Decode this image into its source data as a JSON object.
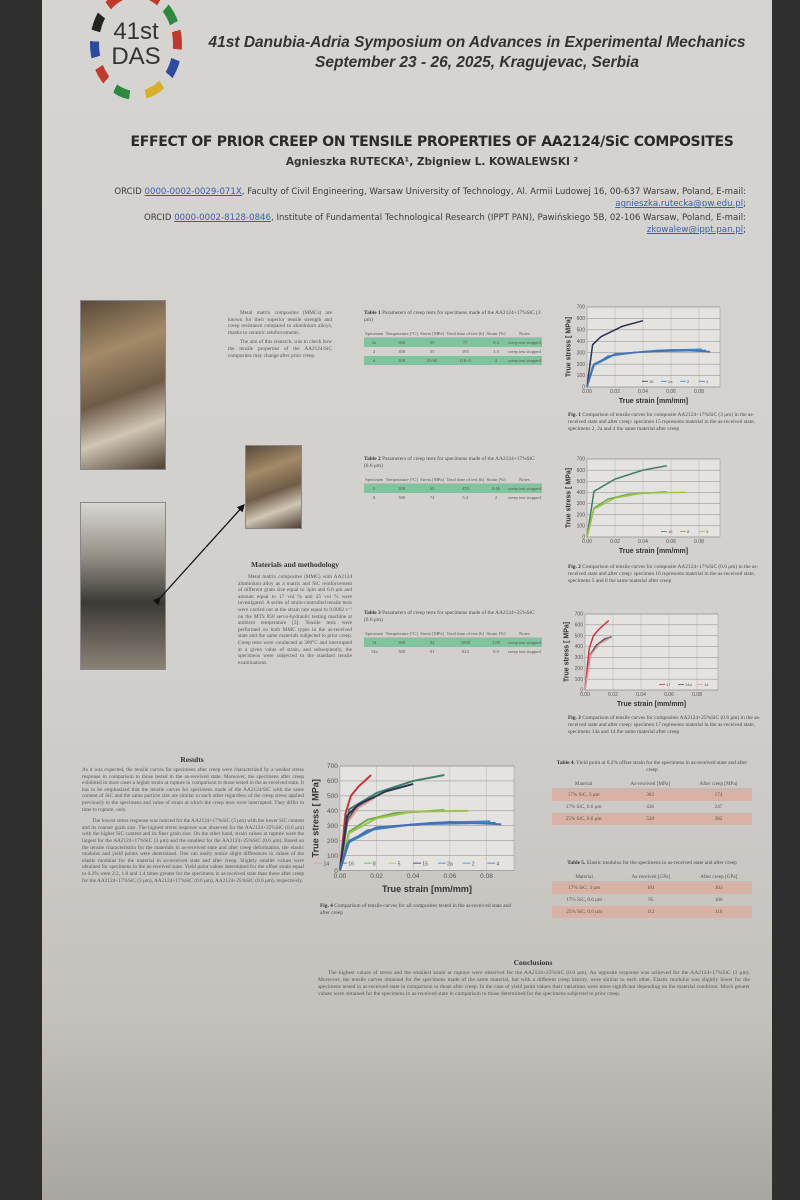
{
  "header": {
    "logo_line1": "41st",
    "logo_line2": "DAS",
    "event": "41st Danubia-Adria Symposium on Advances in Experimental Mechanics",
    "dates": "September 23 - 26, 2025, Kragujevac, Serbia"
  },
  "title": "EFFECT OF PRIOR CREEP ON TENSILE PROPERTIES OF AA2124/SiC COMPOSITES",
  "authors": "Agnieszka RUTECKA¹, Zbigniew L. KOWALEWSKI ²",
  "affiliations": [
    {
      "prefix": "ORCID ",
      "orcid": "0000-0002-0029-071X",
      "text": ", Faculty of Civil Engineering, Warsaw University of Technology, Al. Armii Ludowej 16, 00-637 Warsaw, Poland, E-mail: ",
      "email": "agnieszka.rutecka@pw.edu.pl",
      "suffix": ";"
    },
    {
      "prefix": "ORCID ",
      "orcid": "0000-0002-8128-0846",
      "text": ", Institute of Fundamental Technological Research (IPPT PAN), Pawińskiego 5B, 02-106 Warsaw, Poland, E-mail: ",
      "email": "zkowalew@ippt.pan.pl",
      "suffix": ";"
    }
  ],
  "intro": [
    "Metal matrix composites (MMCs) are known for their superior tensile strength and creep resistance compared to aluminium alloys, thanks to ceramic reinforcements.",
    "The aim of this research, was to check how the tensile properties of the AA2124/SiC composites may change after prior creep."
  ],
  "methods": {
    "heading": "Materials and methodology",
    "text": "Metal matrix composites (MMC) with AA2124 aluminium alloy as a matrix and SiC reinforcement of different grain size equal to 3μm and 0.6 μm and amount equal to 17 vol % and 25 vol % were investigated. A series of strain-controlled tensile tests were carried out at the strain rate equal to 0.0002 s⁻¹ on the MTS 858 servo-hydraulic testing machine at ambient temperature [3]. Tensile tests were performed on both MMC types in the as-received state and the same materials subjected to prior creep. Creep tests were conducted at 300°C and interrupted at a given value of strain, and subsequently, the specimens were subjected to the standard tensile examinations."
  },
  "results": {
    "heading": "Results",
    "p1": "As it was expected, the tensile curves for specimens after creep were characterized by a weaker stress response in comparison to those tested in the as-received state. Moreover, the specimens after creep exhibited in most cases a higher strain at rupture in comparison to those tested in the as-received state. It has to be emphasized that the tensile curves for specimens made of the AA2124/SiC with the same content of SiC and the same particle size are similar to each other regardless of the creep stress applied previously to the specimens and value of strain at which the creep tests were interrupted. They differ in time to rupture, only.",
    "p2": "The lowest stress response was noticed for the AA2124+17%SiC (3 μm) with the lower SiC content and its coarser grain size. The highest stress response was observed for the AA2124+25%SiC (0.6 μm) with the higher SiC content and its finer grain size. On the other hand, strain values at rupture were the largest for the AA2124+17%SiC (3 μm) and the smallest for the AA2124+25%SiC (0.6 μm). Based on the tensile characteristics for the materials in as-received state and after creep deformation, the elastic modulus and yield points were determined. One can easily notice slight differences in values of the elastic modulus for the material in as-received state and after creep. Slightly smaller values were obtained for specimens in the as-received state. Yield point values determined for the offset strain equal to 0.2% were 2.2, 1.8 and 1.4 times greater for the specimens in as-received state than those after creep for the AA2124+17%SiC (3 μm), AA2124+17%SiC (0.6 μm), AA2124+25%SiC (0.6 μm), respectively."
  },
  "conclusions": {
    "heading": "Conclusions",
    "text": "The highest values of stress and the smallest strain at rupture were observed for the AA2124+25%SiC (0.6 μm). An opposite response was achieved for the AA2124+17%SiC (3 μm). Moreover, the tensile curves obtained for the specimens made of the same material, but with a different creep history, were similar to each other. Elastic modulus was slightly lower for the specimens tested in as-received state in comparison to those after creep. In the case of yield point values their variations were more significant depending on the material condition. Much greater values were obtained for the specimens in as-received state in comparison to those determined for the specimens subjected to prior creep."
  },
  "tables": [
    {
      "label": "Table 1",
      "caption": "Parameters of creep tests for specimens made of the AA2124+17%SiC (3 μm)",
      "headers": [
        "Specimen",
        "Temperature [°C]",
        "Stress [MPa]",
        "Total time of test [h]",
        "Strain [%]",
        "Notes"
      ],
      "rows": [
        [
          "2a",
          "300",
          "55",
          "77",
          "0.4",
          "creep test stopped"
        ],
        [
          "2",
          "300",
          "55",
          "195",
          "1.5",
          "creep test stopped"
        ],
        [
          "4",
          "300",
          "55/60",
          "118+5",
          "2",
          "creep test stopped"
        ]
      ],
      "highlight": [
        0,
        2
      ],
      "style": "green"
    },
    {
      "label": "Table 2",
      "caption": "Parameters of creep tests for specimens made of the AA2124+17%SiC (0.6 μm)",
      "headers": [
        "Specimen",
        "Temperature [°C]",
        "Stress [MPa]",
        "Total time of test [h]",
        "Strain [%]",
        "Notes"
      ],
      "rows": [
        [
          "5",
          "300",
          "65",
          "470",
          "0.46",
          "creep test stopped"
        ],
        [
          "8",
          "300",
          "72",
          "5.4",
          "2",
          "creep test stopped"
        ]
      ],
      "highlight": [
        0
      ],
      "style": "green"
    },
    {
      "label": "Table 3",
      "caption": "Parameters of creep tests for specimens made of the AA2124+25%SiC (0.6 μm)",
      "headers": [
        "Specimen",
        "Temperature [°C]",
        "Stress [MPa]",
        "Total time of test [h]",
        "Strain [%]",
        "Notes"
      ],
      "rows": [
        [
          "14",
          "300",
          "92",
          "1098",
          "1.89",
          "creep test stopped"
        ],
        [
          "14a",
          "300",
          "91",
          "624",
          "0.9",
          "creep test stopped"
        ]
      ],
      "highlight": [
        0
      ],
      "style": "green"
    },
    {
      "label": "Table 4.",
      "caption": "Yield point at 0.2% offset strain for the specimens in as-received state and after creep",
      "headers": [
        "Material",
        "As-received [MPa]",
        "After creep [MPa]"
      ],
      "rows": [
        [
          "17% SiC, 3 μm",
          "383",
          "174"
        ],
        [
          "17% SiC, 0.6 μm",
          "436",
          "247"
        ],
        [
          "25% SiC, 0.6 μm",
          "528",
          "382"
        ]
      ],
      "highlight": [
        0,
        2
      ],
      "style": "red"
    },
    {
      "label": "Table 5.",
      "caption": "Elastic modulus for the specimens in as-received state and after creep",
      "headers": [
        "Material",
        "As-received [GPa]",
        "After creep [GPa]"
      ],
      "rows": [
        [
          "17% SiC, 3 μm",
          "101",
          "103"
        ],
        [
          "17% SiC, 0.6 μm",
          "95",
          "100"
        ],
        [
          "25% SiC, 0.6 μm",
          "112",
          "116"
        ]
      ],
      "highlight": [
        0,
        2
      ],
      "style": "red"
    }
  ],
  "figures": [
    {
      "label": "Fig. 1",
      "caption": "Comparison of tensile curves for composite AA2124+17%SiC (3 μm) in the as-received state and after creep: specimen 15 represents material in the as-received state, specimens 2, 2a and 4 the same material after creep"
    },
    {
      "label": "Fig. 2",
      "caption": "Comparison of tensile curves for composite AA2124+17%SiC (0.6 μm) in the as-received state and after creep: specimen 16 represents material in the as-received state, specimens 5 and 8 the same material after creep"
    },
    {
      "label": "Fig. 3",
      "caption": "Comparison of tensile curves for composites AA2124+25%SiC (0.6 μm) in the as-received state and after creep: specimen 17 represents material in the as-received state, specimens 14a and 14 the same material after creep"
    },
    {
      "label": "Fig. 4",
      "caption": "Comparison of tensile curves for all composites tested in the as-received state and after creep"
    }
  ],
  "chart_data": [
    {
      "type": "line",
      "xlabel": "True strain [mm/mm]",
      "ylabel": "True stress [ MPa]",
      "xlim": [
        0,
        0.095
      ],
      "ylim": [
        0,
        700
      ],
      "xticks": [
        "0.00",
        "0.02",
        "0.04",
        "0.06",
        "0.08"
      ],
      "yticks": [
        "0",
        "100",
        "200",
        "300",
        "400",
        "500",
        "600",
        "700"
      ],
      "grid": true,
      "legend": "bottom-right",
      "series": [
        {
          "name": "15",
          "color": "#2b3350",
          "points": [
            [
              0,
              0
            ],
            [
              0.004,
              370
            ],
            [
              0.01,
              440
            ],
            [
              0.025,
              530
            ],
            [
              0.04,
              580
            ]
          ]
        },
        {
          "name": "2a",
          "color": "#3a7dc8",
          "points": [
            [
              0,
              0
            ],
            [
              0.004,
              180
            ],
            [
              0.015,
              270
            ],
            [
              0.04,
              310
            ],
            [
              0.085,
              320
            ]
          ]
        },
        {
          "name": "2",
          "color": "#2f8fd0",
          "points": [
            [
              0,
              0
            ],
            [
              0.005,
              190
            ],
            [
              0.02,
              285
            ],
            [
              0.05,
              320
            ],
            [
              0.082,
              330
            ]
          ]
        },
        {
          "name": "4",
          "color": "#4a6fb0",
          "points": [
            [
              0,
              0
            ],
            [
              0.005,
              200
            ],
            [
              0.02,
              290
            ],
            [
              0.06,
              325
            ],
            [
              0.088,
              310
            ]
          ]
        }
      ]
    },
    {
      "type": "line",
      "xlabel": "True strain [mm/mm]",
      "ylabel": "True stress [ MPa]",
      "xlim": [
        0,
        0.095
      ],
      "ylim": [
        0,
        700
      ],
      "xticks": [
        "0.00",
        "0.02",
        "0.04",
        "0.06",
        "0.08"
      ],
      "yticks": [
        "0",
        "100",
        "200",
        "300",
        "400",
        "500",
        "600",
        "700"
      ],
      "grid": true,
      "legend": "bottom-right",
      "series": [
        {
          "name": "16",
          "color": "#3f7d64",
          "points": [
            [
              0,
              0
            ],
            [
              0.005,
              410
            ],
            [
              0.02,
              520
            ],
            [
              0.04,
              600
            ],
            [
              0.057,
              640
            ]
          ]
        },
        {
          "name": "8",
          "color": "#6aa84f",
          "points": [
            [
              0,
              0
            ],
            [
              0.005,
              260
            ],
            [
              0.015,
              340
            ],
            [
              0.03,
              385
            ],
            [
              0.057,
              405
            ]
          ]
        },
        {
          "name": "5",
          "color": "#9ec24a",
          "points": [
            [
              0,
              0
            ],
            [
              0.005,
              250
            ],
            [
              0.02,
              350
            ],
            [
              0.04,
              395
            ],
            [
              0.07,
              400
            ]
          ]
        }
      ]
    },
    {
      "type": "line",
      "xlabel": "True strain [mm/mm]",
      "ylabel": "True stress [ MPa]",
      "xlim": [
        0,
        0.095
      ],
      "ylim": [
        0,
        700
      ],
      "xticks": [
        "0.00",
        "0.02",
        "0.04",
        "0.06",
        "0.08"
      ],
      "yticks": [
        "0",
        "100",
        "200",
        "300",
        "400",
        "500",
        "600",
        "700"
      ],
      "grid": true,
      "legend": "bottom-right",
      "series": [
        {
          "name": "17",
          "color": "#c8323f",
          "points": [
            [
              0,
              0
            ],
            [
              0.003,
              380
            ],
            [
              0.006,
              500
            ],
            [
              0.01,
              560
            ],
            [
              0.017,
              640
            ]
          ]
        },
        {
          "name": "14a",
          "color": "#555",
          "points": [
            [
              0,
              0
            ],
            [
              0.004,
              330
            ],
            [
              0.008,
              410
            ],
            [
              0.014,
              470
            ],
            [
              0.019,
              490
            ]
          ]
        },
        {
          "name": "14",
          "color": "#e29aa0",
          "points": [
            [
              0,
              0
            ],
            [
              0.004,
              320
            ],
            [
              0.01,
              420
            ],
            [
              0.018,
              480
            ]
          ]
        }
      ]
    },
    {
      "type": "line",
      "xlabel": "True strain [mm/mm]",
      "ylabel": "True stress [ MPa]",
      "xlim": [
        0,
        0.095
      ],
      "ylim": [
        0,
        700
      ],
      "xticks": [
        "0.00",
        "0.02",
        "0.04",
        "0.06",
        "0.08"
      ],
      "yticks": [
        "0",
        "100",
        "200",
        "300",
        "400",
        "500",
        "600",
        "700"
      ],
      "grid": true,
      "legend": "bottom-right",
      "series": [
        {
          "name": "17",
          "color": "#c8323f",
          "points": [
            [
              0,
              0
            ],
            [
              0.003,
              380
            ],
            [
              0.006,
              500
            ],
            [
              0.01,
              560
            ],
            [
              0.017,
              640
            ]
          ]
        },
        {
          "name": "14a",
          "color": "#555",
          "points": [
            [
              0,
              0
            ],
            [
              0.004,
              330
            ],
            [
              0.008,
              410
            ],
            [
              0.014,
              470
            ],
            [
              0.019,
              490
            ]
          ]
        },
        {
          "name": "14",
          "color": "#e29aa0",
          "points": [
            [
              0,
              0
            ],
            [
              0.004,
              320
            ],
            [
              0.01,
              420
            ],
            [
              0.018,
              480
            ]
          ]
        },
        {
          "name": "16",
          "color": "#3f7d64",
          "points": [
            [
              0,
              0
            ],
            [
              0.005,
              410
            ],
            [
              0.02,
              520
            ],
            [
              0.04,
              600
            ],
            [
              0.057,
              640
            ]
          ]
        },
        {
          "name": "8",
          "color": "#6aa84f",
          "points": [
            [
              0,
              0
            ],
            [
              0.005,
              260
            ],
            [
              0.015,
              340
            ],
            [
              0.03,
              385
            ],
            [
              0.057,
              405
            ]
          ]
        },
        {
          "name": "5",
          "color": "#9ec24a",
          "points": [
            [
              0,
              0
            ],
            [
              0.005,
              250
            ],
            [
              0.02,
              350
            ],
            [
              0.04,
              395
            ],
            [
              0.07,
              400
            ]
          ]
        },
        {
          "name": "15",
          "color": "#2b3350",
          "points": [
            [
              0,
              0
            ],
            [
              0.004,
              370
            ],
            [
              0.01,
              440
            ],
            [
              0.025,
              530
            ],
            [
              0.04,
              580
            ]
          ]
        },
        {
          "name": "2a",
          "color": "#3a7dc8",
          "points": [
            [
              0,
              0
            ],
            [
              0.004,
              180
            ],
            [
              0.015,
              270
            ],
            [
              0.04,
              310
            ],
            [
              0.085,
              320
            ]
          ]
        },
        {
          "name": "2",
          "color": "#2f8fd0",
          "points": [
            [
              0,
              0
            ],
            [
              0.005,
              190
            ],
            [
              0.02,
              285
            ],
            [
              0.05,
              320
            ],
            [
              0.082,
              330
            ]
          ]
        },
        {
          "name": "4",
          "color": "#4a6fb0",
          "points": [
            [
              0,
              0
            ],
            [
              0.005,
              200
            ],
            [
              0.02,
              290
            ],
            [
              0.06,
              325
            ],
            [
              0.088,
              310
            ]
          ]
        }
      ]
    }
  ]
}
